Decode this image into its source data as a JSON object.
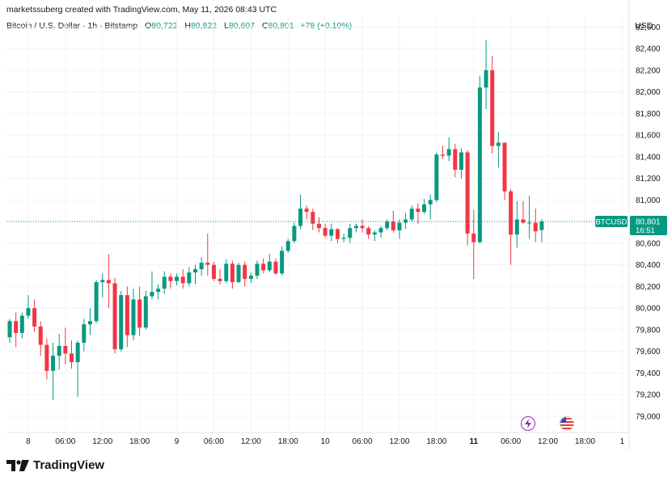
{
  "header": {
    "attribution": "marketssuberg created with TradingView.com, May 11, 2026 08:43 UTC",
    "symbol": "Bitcoin / U.S. Dollar · 1h · Bitstamp",
    "open_label": "O",
    "open": "80,722",
    "high_label": "H",
    "high": "80,822",
    "low_label": "L",
    "low": "80,607",
    "close_label": "C",
    "close": "80,801",
    "change": "+78 (+0.10%)"
  },
  "currency": "USD",
  "price_tag": {
    "ticker": "BTCUSD",
    "price": "80,801",
    "countdown": "16:51"
  },
  "brand": "TradingView",
  "colors": {
    "up": "#089981",
    "down": "#f23645",
    "last_price": "#089981",
    "axis_text": "#131722"
  },
  "icons": [
    "lightning-event-icon",
    "us-flag-event-icon"
  ],
  "chart_data": {
    "type": "candlestick",
    "title": "",
    "xlabel": "",
    "ylabel": "",
    "ylim": [
      78850,
      82700
    ],
    "y_ticks": [
      79000,
      79200,
      79400,
      79600,
      79800,
      80000,
      80200,
      80400,
      80600,
      80800,
      81000,
      81200,
      81400,
      81600,
      81800,
      82000,
      82200,
      82400,
      82600
    ],
    "y_tick_labels": [
      "79,000",
      "79,200",
      "79,400",
      "79,600",
      "79,800",
      "80,000",
      "80,200",
      "80,400",
      "80,600",
      "80,800",
      "81,000",
      "81,200",
      "81,400",
      "81,600",
      "81,800",
      "82,000",
      "82,200",
      "82,400",
      "82,600"
    ],
    "x_ticks": [
      {
        "label": "8",
        "bar": 3,
        "bold": false
      },
      {
        "label": "06:00",
        "bar": 9,
        "bold": false
      },
      {
        "label": "12:00",
        "bar": 15,
        "bold": false
      },
      {
        "label": "18:00",
        "bar": 21,
        "bold": false
      },
      {
        "label": "9",
        "bar": 27,
        "bold": false
      },
      {
        "label": "06:00",
        "bar": 33,
        "bold": false
      },
      {
        "label": "12:00",
        "bar": 39,
        "bold": false
      },
      {
        "label": "18:00",
        "bar": 45,
        "bold": false
      },
      {
        "label": "10",
        "bar": 51,
        "bold": false
      },
      {
        "label": "06:00",
        "bar": 57,
        "bold": false
      },
      {
        "label": "12:00",
        "bar": 63,
        "bold": false
      },
      {
        "label": "18:00",
        "bar": 69,
        "bold": false
      },
      {
        "label": "11",
        "bar": 75,
        "bold": true
      },
      {
        "label": "06:00",
        "bar": 81,
        "bold": false
      },
      {
        "label": "12:00",
        "bar": 87,
        "bold": false
      },
      {
        "label": "18:00",
        "bar": 93,
        "bold": false
      },
      {
        "label": "1",
        "bar": 99,
        "bold": false
      }
    ],
    "ohlc": [
      [
        79730,
        79900,
        79680,
        79880
      ],
      [
        79880,
        79960,
        79640,
        79770
      ],
      [
        79770,
        79960,
        79720,
        79930
      ],
      [
        79930,
        80120,
        79900,
        80000
      ],
      [
        80000,
        80080,
        79780,
        79830
      ],
      [
        79830,
        79880,
        79560,
        79660
      ],
      [
        79660,
        79720,
        79340,
        79420
      ],
      [
        79420,
        79680,
        79150,
        79560
      ],
      [
        79560,
        79760,
        79430,
        79650
      ],
      [
        79650,
        79820,
        79480,
        79580
      ],
      [
        79580,
        79700,
        79440,
        79500
      ],
      [
        79500,
        79700,
        79180,
        79680
      ],
      [
        79680,
        79900,
        79600,
        79850
      ],
      [
        79850,
        80000,
        79750,
        79880
      ],
      [
        79880,
        80260,
        79860,
        80240
      ],
      [
        80240,
        80320,
        80100,
        80260
      ],
      [
        80260,
        80500,
        80000,
        80230
      ],
      [
        80230,
        80280,
        79580,
        79620
      ],
      [
        79620,
        80160,
        79600,
        80120
      ],
      [
        80120,
        80200,
        79640,
        79750
      ],
      [
        79750,
        80180,
        79700,
        80080
      ],
      [
        80080,
        80200,
        79740,
        79820
      ],
      [
        79820,
        80160,
        79800,
        80110
      ],
      [
        80110,
        80340,
        80080,
        80150
      ],
      [
        80150,
        80220,
        80080,
        80180
      ],
      [
        80180,
        80340,
        80130,
        80290
      ],
      [
        80290,
        80320,
        80180,
        80250
      ],
      [
        80250,
        80320,
        80210,
        80290
      ],
      [
        80290,
        80360,
        80180,
        80230
      ],
      [
        80230,
        80380,
        80200,
        80330
      ],
      [
        80330,
        80400,
        80220,
        80360
      ],
      [
        80360,
        80470,
        80300,
        80420
      ],
      [
        80420,
        80690,
        80300,
        80400
      ],
      [
        80400,
        80430,
        80250,
        80270
      ],
      [
        80270,
        80360,
        80220,
        80250
      ],
      [
        80250,
        80450,
        80230,
        80410
      ],
      [
        80410,
        80440,
        80180,
        80240
      ],
      [
        80240,
        80420,
        80230,
        80400
      ],
      [
        80400,
        80430,
        80200,
        80270
      ],
      [
        80270,
        80330,
        80230,
        80300
      ],
      [
        80300,
        80440,
        80270,
        80410
      ],
      [
        80410,
        80460,
        80320,
        80350
      ],
      [
        80350,
        80500,
        80330,
        80430
      ],
      [
        80430,
        80460,
        80310,
        80320
      ],
      [
        80320,
        80570,
        80300,
        80530
      ],
      [
        80530,
        80640,
        80510,
        80620
      ],
      [
        80620,
        80790,
        80600,
        80760
      ],
      [
        80760,
        81050,
        80730,
        80920
      ],
      [
        80920,
        80950,
        80820,
        80890
      ],
      [
        80890,
        80920,
        80720,
        80780
      ],
      [
        80780,
        80840,
        80700,
        80740
      ],
      [
        80740,
        80780,
        80650,
        80670
      ],
      [
        80670,
        80780,
        80620,
        80730
      ],
      [
        80730,
        80740,
        80600,
        80640
      ],
      [
        80640,
        80690,
        80610,
        80650
      ],
      [
        80650,
        80780,
        80600,
        80740
      ],
      [
        80740,
        80780,
        80700,
        80760
      ],
      [
        80760,
        80820,
        80700,
        80740
      ],
      [
        80740,
        80760,
        80640,
        80680
      ],
      [
        80680,
        80720,
        80620,
        80700
      ],
      [
        80700,
        80760,
        80650,
        80740
      ],
      [
        80740,
        80820,
        80720,
        80800
      ],
      [
        80800,
        80900,
        80700,
        80720
      ],
      [
        80720,
        80820,
        80640,
        80790
      ],
      [
        80790,
        80880,
        80730,
        80820
      ],
      [
        80820,
        80950,
        80800,
        80920
      ],
      [
        80920,
        80970,
        80780,
        80890
      ],
      [
        80890,
        81010,
        80870,
        80960
      ],
      [
        80960,
        81050,
        80820,
        81000
      ],
      [
        81000,
        81440,
        80980,
        81420
      ],
      [
        81420,
        81500,
        81380,
        81410
      ],
      [
        81410,
        81580,
        81360,
        81470
      ],
      [
        81470,
        81520,
        81210,
        81280
      ],
      [
        81280,
        81480,
        81200,
        81440
      ],
      [
        81440,
        81460,
        80580,
        80690
      ],
      [
        80690,
        80910,
        80270,
        80610
      ],
      [
        80610,
        82150,
        80600,
        82040
      ],
      [
        82040,
        82480,
        81840,
        82200
      ],
      [
        82200,
        82330,
        81430,
        81500
      ],
      [
        81500,
        81630,
        81300,
        81530
      ],
      [
        81530,
        81520,
        81000,
        81080
      ],
      [
        81080,
        81100,
        80400,
        80680
      ],
      [
        80680,
        80990,
        80560,
        80820
      ],
      [
        80820,
        80990,
        80780,
        80790
      ],
      [
        80790,
        81040,
        80640,
        80790
      ],
      [
        80790,
        80920,
        80610,
        80710
      ],
      [
        80722,
        80822,
        80607,
        80801
      ]
    ]
  }
}
